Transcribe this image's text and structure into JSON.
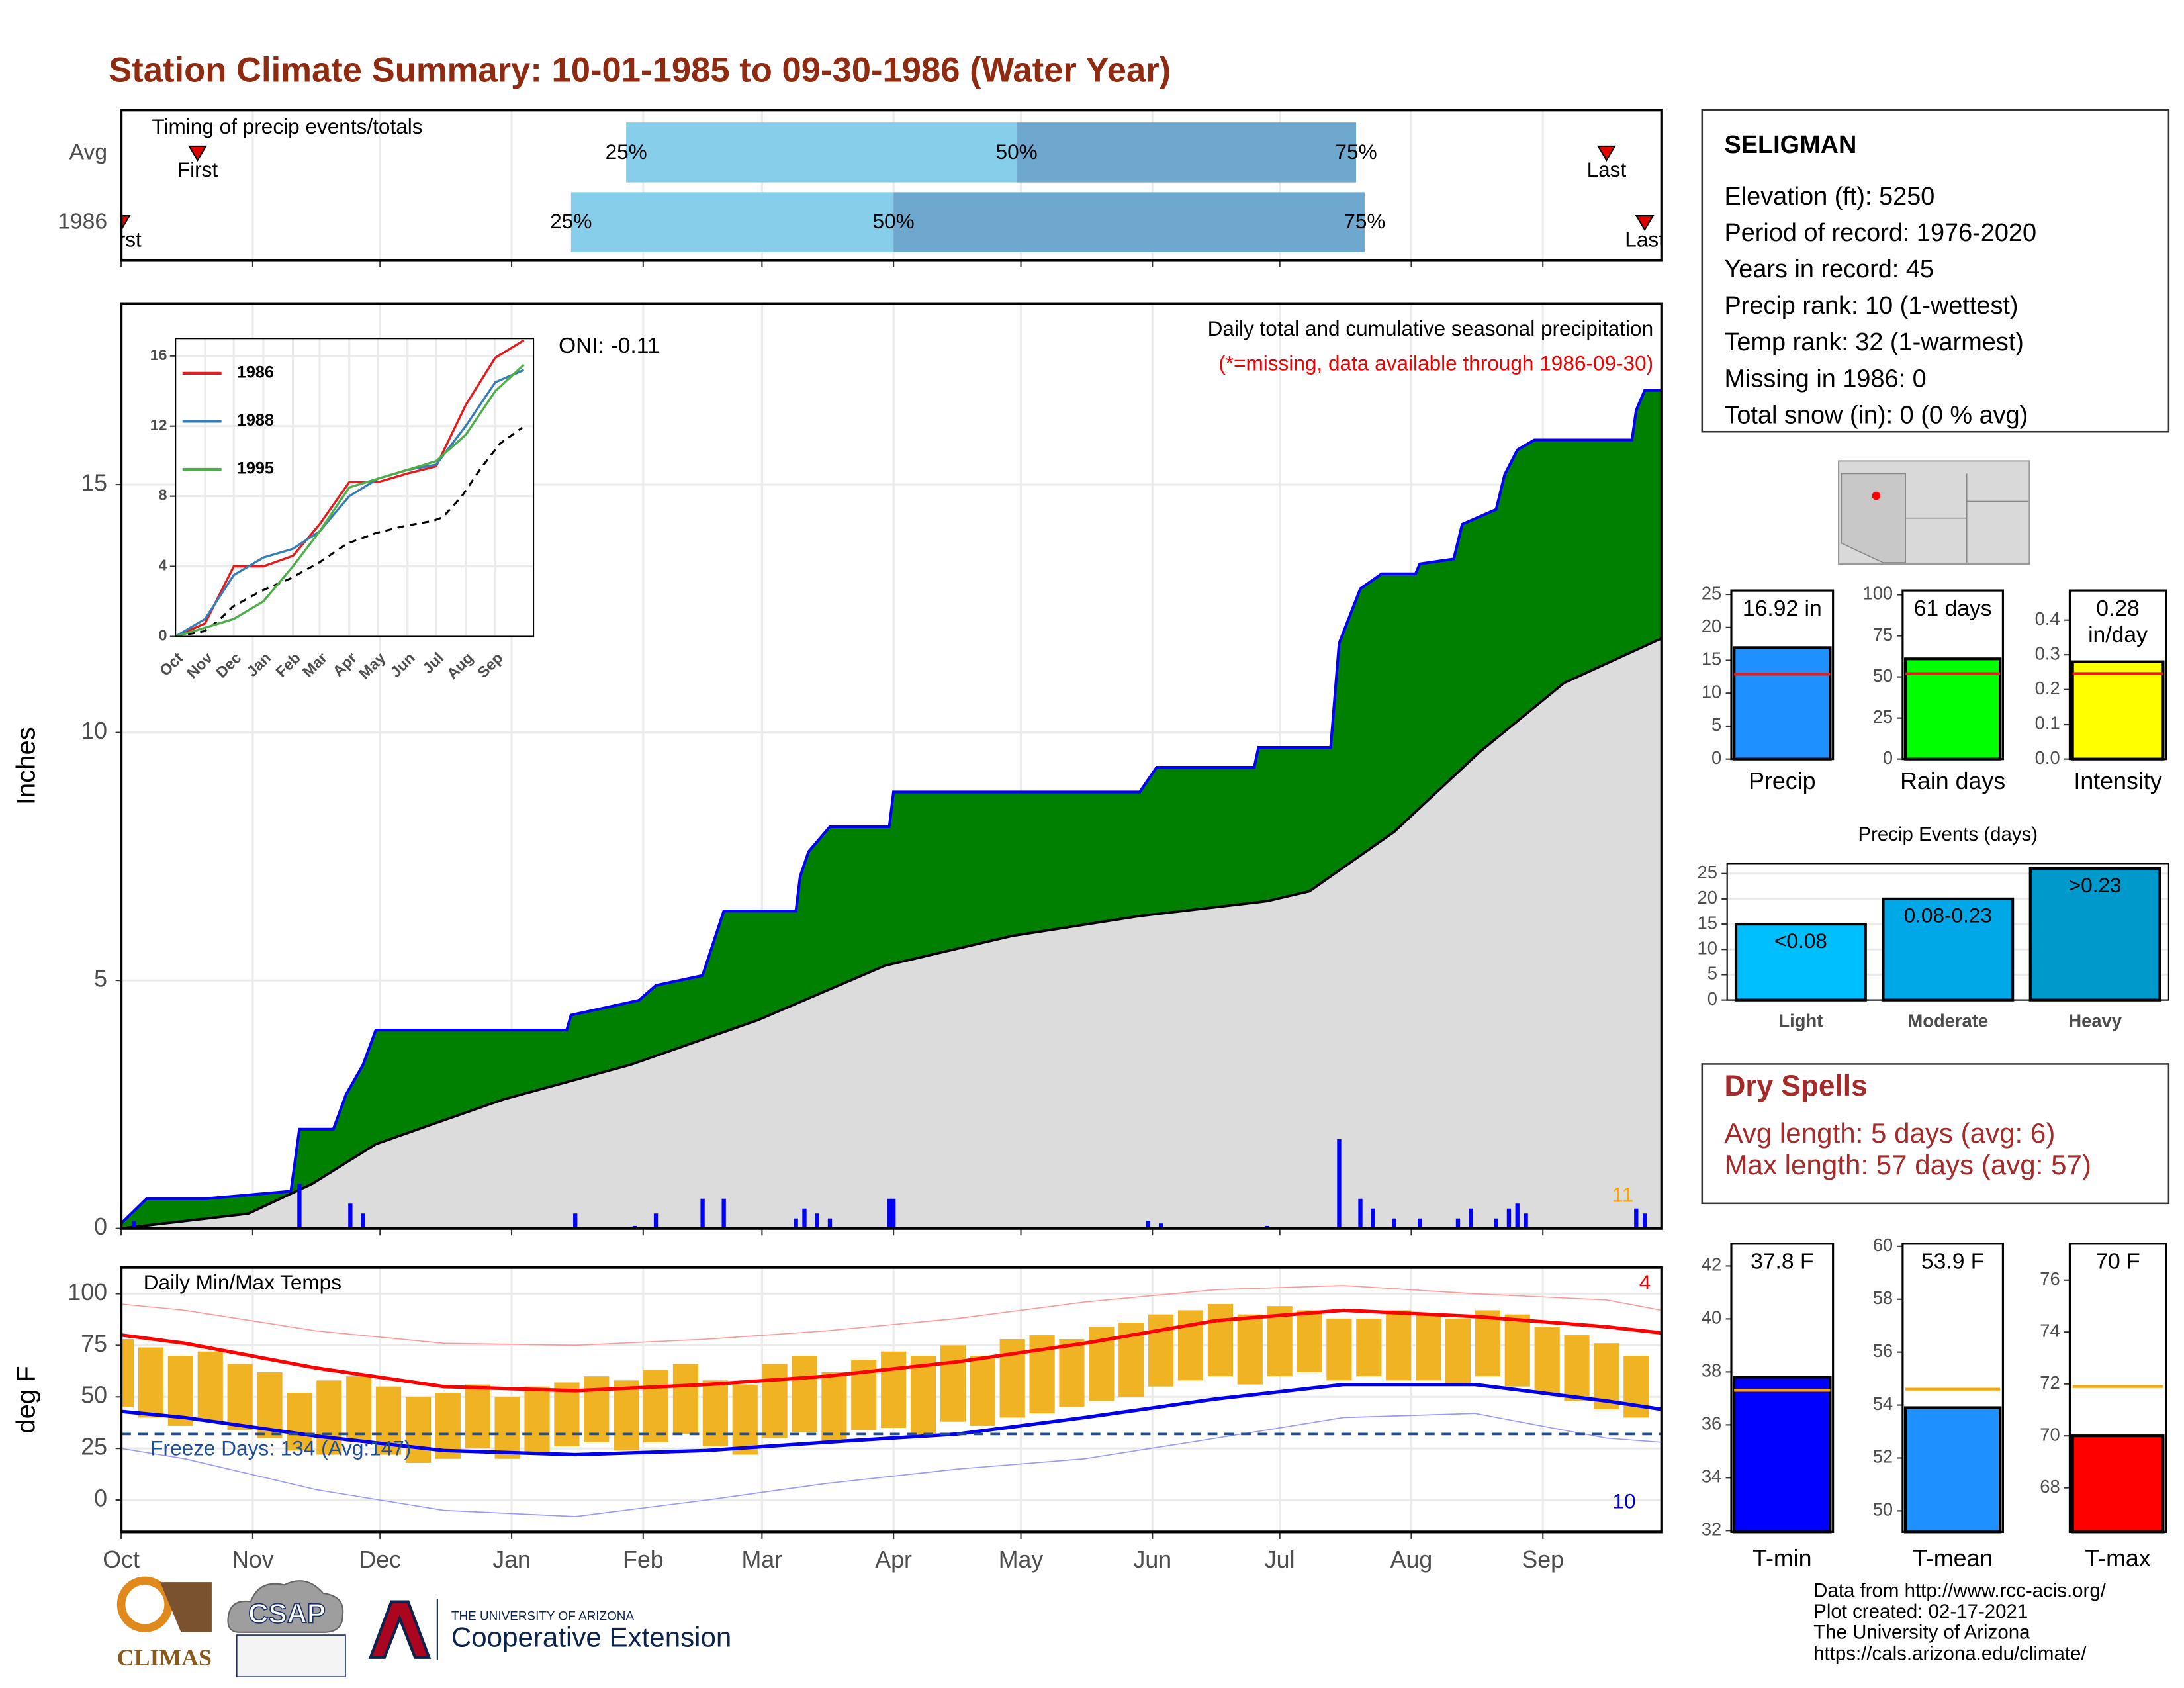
{
  "title": "Station Climate Summary: 10-01-1985 to 09-30-1986 (Water Year)",
  "station_info": {
    "name": "SELIGMAN",
    "lines": [
      "Elevation (ft): 5250",
      "Period of record: 1976-2020",
      "Years in record: 45",
      "Precip rank: 10 (1-wettest)",
      "Temp rank: 32 (1-warmest)",
      "Missing in 1986: 0",
      "Total snow (in): 0 (0 % avg)"
    ]
  },
  "dry_spells": {
    "title": "Dry Spells",
    "lines": [
      "Avg length: 5 days (avg: 6)",
      "Max length: 57 days (avg: 57)"
    ]
  },
  "footer": {
    "lines": [
      "Data from http://www.rcc-acis.org/",
      "Plot created: 02-17-2021",
      "The University of Arizona",
      "https://cals.arizona.edu/climate/"
    ]
  },
  "logos": {
    "climas": "CLIMAS",
    "csap": "CSAP",
    "university": "THE UNIVERSITY OF ARIZONA",
    "extension": "Cooperative Extension"
  },
  "chart_data": [
    {
      "type": "timing",
      "title": "Timing of precip events/totals",
      "xlim": [
        0,
        363
      ],
      "point_labels": [
        "First",
        "25%",
        "50%",
        "75%",
        "Last"
      ],
      "segment_colors": [
        "#87ceeb",
        "#6fa8cf"
      ],
      "marker_color": "#e00000",
      "series": [
        {
          "name": "Avg",
          "values": [
            18,
            119,
            211,
            291,
            350
          ]
        },
        {
          "name": "1986",
          "values": [
            0,
            106,
            182,
            293,
            359
          ]
        }
      ]
    },
    {
      "type": "precip",
      "title": "Daily total and cumulative seasonal precipitation",
      "subtitle": "(*=missing, data available through 1986-09-30)",
      "annotations": [
        "ONI: -0.11",
        "11"
      ],
      "ylabel": "Inches",
      "xlim": [
        0,
        363
      ],
      "ylim": [
        0,
        18.65
      ],
      "yticks": [
        0,
        5,
        10,
        15
      ],
      "grid": true,
      "series": [
        {
          "color": "#0000ff",
          "fill": "#008000",
          "x": [
            0,
            6,
            20,
            40,
            42,
            50,
            53,
            57,
            60,
            105,
            106,
            122,
            126,
            137,
            142,
            159,
            160,
            162,
            167,
            181,
            182,
            240,
            244,
            267,
            268,
            285,
            287,
            292,
            297,
            305,
            306,
            314,
            316,
            324,
            326,
            329,
            333,
            356,
            357,
            359,
            363
          ],
          "values": [
            0.1,
            0.6,
            0.6,
            0.75,
            2.0,
            2.0,
            2.7,
            3.3,
            4.0,
            4.0,
            4.3,
            4.6,
            4.9,
            5.1,
            6.4,
            6.4,
            7.1,
            7.6,
            8.1,
            8.1,
            8.8,
            8.8,
            9.3,
            9.3,
            9.7,
            9.7,
            11.8,
            12.9,
            13.2,
            13.2,
            13.4,
            13.5,
            14.2,
            14.5,
            15.2,
            15.7,
            15.9,
            15.9,
            16.5,
            16.9,
            16.9
          ]
        },
        {
          "color": "#000000",
          "fill": "#dcdcdc",
          "x": [
            0,
            30,
            45,
            60,
            90,
            120,
            150,
            180,
            210,
            240,
            270,
            280,
            300,
            320,
            340,
            363
          ],
          "values": [
            0,
            0.3,
            0.9,
            1.7,
            2.6,
            3.3,
            4.2,
            5.3,
            5.9,
            6.3,
            6.6,
            6.8,
            8.0,
            9.6,
            11.0,
            11.9
          ]
        },
        {
          "color": "#0000ff",
          "x": [
            3,
            42,
            54,
            57,
            107,
            121,
            126,
            137,
            142,
            159,
            161,
            164,
            167,
            181,
            182,
            242,
            245,
            270,
            287,
            292,
            295,
            300,
            306,
            315,
            318,
            324,
            327,
            329,
            331,
            357,
            359
          ],
          "values": [
            0.15,
            0.9,
            0.5,
            0.3,
            0.3,
            0.05,
            0.3,
            0.6,
            0.6,
            0.2,
            0.4,
            0.3,
            0.2,
            0.6,
            0.6,
            0.15,
            0.1,
            0.05,
            1.8,
            0.6,
            0.4,
            0.2,
            0.2,
            0.2,
            0.4,
            0.2,
            0.4,
            0.5,
            0.3,
            0.4,
            0.3
          ]
        }
      ]
    },
    {
      "type": "line",
      "xlim": [
        0,
        375
      ],
      "ylim": [
        0,
        17
      ],
      "yticks": [
        0,
        4,
        8,
        12,
        16
      ],
      "x": [
        0,
        31,
        61,
        92,
        123,
        151,
        182,
        212,
        243,
        273,
        304,
        335,
        365
      ],
      "series": [
        {
          "name": "1986",
          "color": "#e41a1c",
          "values": [
            0,
            0.75,
            4.0,
            4.0,
            4.6,
            6.4,
            8.8,
            8.8,
            9.3,
            9.7,
            13.2,
            15.9,
            16.9
          ]
        },
        {
          "name": "1988",
          "color": "#377eb8",
          "values": [
            0,
            1.0,
            3.5,
            4.5,
            5.0,
            6.0,
            8.0,
            9.0,
            9.5,
            9.8,
            12.0,
            14.5,
            15.2
          ]
        },
        {
          "name": "1995",
          "color": "#4daf4a",
          "values": [
            0,
            0.5,
            1.0,
            2.0,
            4.0,
            6.0,
            8.5,
            9.0,
            9.5,
            10.0,
            11.5,
            14.0,
            15.5
          ]
        }
      ]
    },
    {
      "type": "temperature",
      "title": "Daily Min/Max Temps",
      "annotations": [
        "Freeze Days: 134 (Avg:147)",
        "4",
        "10"
      ],
      "ylabel": "deg F",
      "xlim": [
        0,
        363
      ],
      "xticks": [
        {
          "value": 0,
          "label": "Oct"
        },
        {
          "value": 31,
          "label": "Nov"
        },
        {
          "value": 61,
          "label": "Dec"
        },
        {
          "value": 92,
          "label": "Jan"
        },
        {
          "value": 123,
          "label": "Feb"
        },
        {
          "value": 151,
          "label": "Mar"
        },
        {
          "value": 182,
          "label": "Apr"
        },
        {
          "value": 212,
          "label": "May"
        },
        {
          "value": 243,
          "label": "Jun"
        },
        {
          "value": 273,
          "label": "Jul"
        },
        {
          "value": 304,
          "label": "Aug"
        },
        {
          "value": 335,
          "label": "Sep"
        }
      ],
      "ylim": [
        -15.5,
        112.8
      ],
      "yticks": [
        0,
        25,
        50,
        75,
        100
      ],
      "grid": true,
      "freeze_line": 32,
      "bar_color": "#f0b323",
      "daily": {
        "x": [
          0,
          7,
          14,
          21,
          28,
          35,
          42,
          49,
          56,
          63,
          70,
          77,
          84,
          91,
          98,
          105,
          112,
          119,
          126,
          133,
          140,
          147,
          154,
          161,
          168,
          175,
          182,
          189,
          196,
          203,
          210,
          217,
          224,
          231,
          238,
          245,
          252,
          259,
          266,
          273,
          280,
          287,
          294,
          301,
          308,
          315,
          322,
          329,
          336,
          343,
          350,
          357
        ],
        "tmax": [
          78,
          74,
          70,
          72,
          66,
          62,
          52,
          58,
          60,
          55,
          50,
          52,
          56,
          50,
          55,
          57,
          60,
          58,
          63,
          66,
          58,
          56,
          66,
          70,
          62,
          68,
          72,
          70,
          75,
          70,
          78,
          80,
          78,
          84,
          86,
          90,
          92,
          95,
          90,
          94,
          92,
          88,
          88,
          92,
          90,
          88,
          92,
          90,
          84,
          80,
          76,
          70
        ],
        "tmin": [
          45,
          40,
          36,
          38,
          34,
          30,
          24,
          22,
          28,
          22,
          18,
          20,
          25,
          20,
          22,
          26,
          28,
          24,
          28,
          32,
          26,
          22,
          30,
          33,
          28,
          34,
          35,
          32,
          38,
          36,
          40,
          42,
          45,
          48,
          50,
          55,
          58,
          60,
          56,
          60,
          62,
          58,
          60,
          58,
          58,
          56,
          60,
          55,
          52,
          48,
          44,
          40
        ]
      },
      "x": [
        0,
        15,
        46,
        76,
        107,
        138,
        166,
        197,
        227,
        258,
        288,
        319,
        350,
        363
      ],
      "series": [
        {
          "color": "#ff9999",
          "width": 0.8,
          "values": [
            95,
            92,
            82,
            76,
            75,
            78,
            82,
            88,
            96,
            102,
            104,
            100,
            97,
            92
          ]
        },
        {
          "color": "#9999ff",
          "width": 0.8,
          "values": [
            25,
            20,
            5,
            -5,
            -8,
            0,
            8,
            15,
            20,
            30,
            40,
            42,
            30,
            28
          ]
        },
        {
          "color": "#ff0000",
          "width": 2.5,
          "values": [
            80,
            76,
            64,
            55,
            53,
            56,
            60,
            67,
            76,
            87,
            92,
            89,
            84,
            81
          ]
        },
        {
          "color": "#0000ee",
          "width": 2.5,
          "values": [
            43,
            40,
            31,
            24,
            22,
            24,
            28,
            32,
            40,
            49,
            56,
            56,
            48,
            44
          ]
        }
      ]
    },
    {
      "type": "summary-bar",
      "categories": [
        "Precip"
      ],
      "values": [
        16.92
      ],
      "value_labels": [
        "16.92 in"
      ],
      "average": [
        12.9
      ],
      "color": "#1e90ff",
      "avg_color": "#e0201b",
      "ylim": [
        0,
        25.6
      ],
      "yticks": [
        0,
        5,
        10,
        15,
        20,
        25
      ]
    },
    {
      "type": "summary-bar",
      "categories": [
        "Rain days"
      ],
      "values": [
        61
      ],
      "value_labels": [
        "61 days"
      ],
      "average": [
        52
      ],
      "color": "#00ff00",
      "avg_color": "#e0201b",
      "ylim": [
        0,
        102.6
      ],
      "yticks": [
        0,
        25,
        50,
        75,
        100
      ]
    },
    {
      "type": "summary-bar",
      "categories": [
        "Intensity"
      ],
      "values": [
        0.28
      ],
      "value_labels": [
        "0.28 in/day"
      ],
      "average": [
        0.246
      ],
      "color": "#ffff00",
      "avg_color": "#e0201b",
      "ylim": [
        0,
        0.485
      ],
      "yticks": [
        {
          "value": 0,
          "label": "0.0"
        },
        0.1,
        0.2,
        0.3,
        0.4
      ]
    },
    {
      "type": "events",
      "title": "Precip Events (days)",
      "categories": [
        "Light",
        "Moderate",
        "Heavy"
      ],
      "values": [
        15,
        20,
        26
      ],
      "thresholds": [
        "<0.08",
        "0.08-0.23",
        ">0.23"
      ],
      "colors": [
        "#00bfff",
        "#00a8e8",
        "#0099cc"
      ],
      "ylim": [
        0,
        27
      ],
      "yticks": [
        0,
        5,
        10,
        15,
        20,
        25
      ],
      "grid": true
    },
    {
      "type": "summary-bar",
      "categories": [
        "T-min"
      ],
      "values": [
        37.8
      ],
      "value_labels": [
        "37.8 F"
      ],
      "average": [
        37.3
      ],
      "color": "#0000ff",
      "avg_color": "#ffa500",
      "ylim": [
        31.95,
        42.84
      ],
      "yticks": [
        32,
        34,
        36,
        38,
        40,
        42
      ]
    },
    {
      "type": "summary-bar",
      "categories": [
        "T-mean"
      ],
      "values": [
        53.9
      ],
      "value_labels": [
        "53.9 F"
      ],
      "average": [
        54.6
      ],
      "color": "#1e90ff",
      "avg_color": "#ffa500",
      "ylim": [
        49.2,
        60.1
      ],
      "yticks": [
        50,
        52,
        54,
        56,
        58,
        60
      ]
    },
    {
      "type": "summary-bar",
      "categories": [
        "T-max"
      ],
      "values": [
        70
      ],
      "value_labels": [
        "70 F"
      ],
      "average": [
        71.9
      ],
      "color": "#ff0000",
      "avg_color": "#ffa500",
      "ylim": [
        66.3,
        77.4
      ],
      "yticks": [
        68,
        70,
        72,
        74,
        76
      ]
    }
  ]
}
